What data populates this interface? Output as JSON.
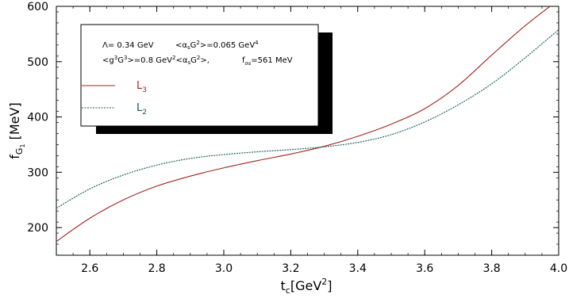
{
  "chart_data": {
    "type": "line",
    "xlabel": "t_c[GeV^2]",
    "ylabel": "f_G1 [MeV]",
    "xlim": [
      2.5,
      4.0
    ],
    "ylim": [
      150,
      600
    ],
    "x_ticks": [
      2.6,
      2.8,
      3.0,
      3.2,
      3.4,
      3.6,
      3.8,
      4.0
    ],
    "x_tick_labels": [
      "2.6",
      "2.8",
      "3.0",
      "3.2",
      "3.4",
      "3.6",
      "3.8",
      "4.0"
    ],
    "y_ticks": [
      200,
      300,
      400,
      500,
      600
    ],
    "y_tick_labels": [
      "200",
      "300",
      "400",
      "500",
      "600"
    ],
    "grid": false,
    "legend_position": "top-left",
    "series": [
      {
        "name": "L3",
        "color": "#a0261e",
        "style": "solid",
        "x": [
          2.5,
          2.6,
          2.7,
          2.8,
          2.9,
          3.0,
          3.1,
          3.2,
          3.3,
          3.4,
          3.5,
          3.6,
          3.7,
          3.8,
          3.9,
          4.0
        ],
        "y": [
          175,
          217,
          250,
          275,
          293,
          308,
          321,
          333,
          347,
          365,
          387,
          415,
          457,
          512,
          565,
          612
        ]
      },
      {
        "name": "L2",
        "color": "#0f5a5a",
        "style": "dashed",
        "x": [
          2.5,
          2.6,
          2.7,
          2.8,
          2.9,
          3.0,
          3.1,
          3.2,
          3.3,
          3.4,
          3.5,
          3.6,
          3.7,
          3.8,
          3.9,
          4.0
        ],
        "y": [
          235,
          270,
          295,
          313,
          325,
          332,
          337,
          341,
          346,
          354,
          368,
          391,
          422,
          460,
          507,
          558
        ]
      }
    ],
    "annotation_box": {
      "line1_left": "Λ= 0.34 GeV",
      "line1_right": "<α_sG^2>=0.065 GeV^4",
      "line2_left": "<g^3G^3>=0.8 GeV^2<α_sG^2>,",
      "line2_right": "f_σα=561 MeV"
    }
  }
}
